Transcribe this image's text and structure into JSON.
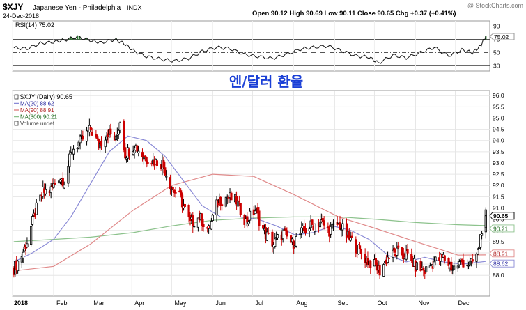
{
  "header": {
    "symbol": "$XJY",
    "name": "Japanese Yen - Philadelphia",
    "exchange": "INDX",
    "date": "24-Dec-2018",
    "ohlc": "Open 90.12  High 90.69  Low 90.11  Close 90.65  Chg +0.37 (+0.41%)",
    "watermark": "@ StockCharts.com"
  },
  "overlay_title": "엔/달러 환율",
  "colors": {
    "up": "#000000",
    "down": "#cc0000",
    "ma20": "#8a8ad6",
    "ma90": "#e08a8a",
    "ma300": "#8cc28c",
    "rsi_fill": "#2e7d32",
    "title_blue": "#1a3fd6",
    "grid": "#e6e6e6"
  },
  "chart_data": [
    {
      "type": "line",
      "panel": "RSI",
      "label": "RSI(14) 75.02",
      "last_value": 75.02,
      "last_label": "75.02",
      "y_ticks": [
        30,
        50,
        70,
        90
      ],
      "ylim": [
        24,
        96
      ],
      "reference_lines": [
        30,
        50,
        70
      ],
      "x": [
        "2018-01-02",
        "2018-01-12",
        "2018-01-22",
        "2018-02-01",
        "2018-02-09",
        "2018-02-19",
        "2018-03-01",
        "2018-03-09",
        "2018-03-19",
        "2018-03-26",
        "2018-04-02",
        "2018-04-12",
        "2018-04-23",
        "2018-05-03",
        "2018-05-14",
        "2018-05-24",
        "2018-06-04",
        "2018-06-14",
        "2018-06-25",
        "2018-07-05",
        "2018-07-16",
        "2018-07-26",
        "2018-08-06",
        "2018-08-16",
        "2018-08-27",
        "2018-09-06",
        "2018-09-17",
        "2018-09-27",
        "2018-10-04",
        "2018-10-15",
        "2018-10-25",
        "2018-11-05",
        "2018-11-15",
        "2018-11-26",
        "2018-12-06",
        "2018-12-14",
        "2018-12-20",
        "2018-12-24"
      ],
      "values": [
        57,
        56,
        64,
        66,
        69,
        74,
        68,
        65,
        70,
        64,
        53,
        44,
        40,
        37,
        41,
        52,
        58,
        56,
        47,
        44,
        41,
        47,
        55,
        58,
        60,
        53,
        45,
        43,
        34,
        46,
        42,
        50,
        58,
        45,
        54,
        50,
        60,
        75
      ]
    },
    {
      "type": "candlestick",
      "panel": "price",
      "legend": [
        {
          "key": "main",
          "text": "$XJY (Daily) 90.65"
        },
        {
          "key": "ma20",
          "text": "MA(20) 88.62"
        },
        {
          "key": "ma90",
          "text": "MA(90) 88.91"
        },
        {
          "key": "ma300",
          "text": "MA(300) 90.21"
        },
        {
          "key": "volume",
          "text": "Volume undef"
        }
      ],
      "y_ticks": [
        "88.0",
        "88.5",
        "89.0",
        "89.5",
        "90.0",
        "90.5",
        "91.0",
        "91.5",
        "92.0",
        "92.5",
        "93.0",
        "93.5",
        "94.0",
        "94.5",
        "95.0",
        "95.5",
        "96.0"
      ],
      "ylim": [
        87.2,
        96.1
      ],
      "x_labels": [
        "2018",
        "Feb",
        "Mar",
        "Apr",
        "May",
        "Jun",
        "Jul",
        "Aug",
        "Sep",
        "Oct",
        "Nov",
        "Dec"
      ],
      "last_value_tags": [
        {
          "key": "close",
          "text": "90.65",
          "value": 90.65
        },
        {
          "key": "ma300",
          "text": "90.21",
          "value": 90.21
        },
        {
          "key": "ma90",
          "text": "88.91",
          "value": 88.91
        },
        {
          "key": "ma20",
          "text": "88.62",
          "value": 88.62
        }
      ],
      "close_path": {
        "x": [
          "2018-01-02",
          "2018-01-08",
          "2018-01-12",
          "2018-01-18",
          "2018-01-24",
          "2018-01-30",
          "2018-02-05",
          "2018-02-09",
          "2018-02-15",
          "2018-02-22",
          "2018-03-01",
          "2018-03-07",
          "2018-03-14",
          "2018-03-20",
          "2018-03-23",
          "2018-03-27",
          "2018-04-03",
          "2018-04-10",
          "2018-04-17",
          "2018-04-24",
          "2018-05-01",
          "2018-05-08",
          "2018-05-15",
          "2018-05-22",
          "2018-05-29",
          "2018-06-05",
          "2018-06-12",
          "2018-06-19",
          "2018-06-26",
          "2018-07-03",
          "2018-07-10",
          "2018-07-17",
          "2018-07-24",
          "2018-07-31",
          "2018-08-07",
          "2018-08-14",
          "2018-08-21",
          "2018-08-28",
          "2018-09-04",
          "2018-09-11",
          "2018-09-18",
          "2018-09-25",
          "2018-10-02",
          "2018-10-05",
          "2018-10-11",
          "2018-10-18",
          "2018-10-25",
          "2018-11-01",
          "2018-11-08",
          "2018-11-15",
          "2018-11-22",
          "2018-11-29",
          "2018-12-06",
          "2018-12-13",
          "2018-12-18",
          "2018-12-21",
          "2018-12-24"
        ],
        "values": [
          88.3,
          88.9,
          89.5,
          90.8,
          91.7,
          91.8,
          92.4,
          92.2,
          93.6,
          94.0,
          94.5,
          93.8,
          94.4,
          94.0,
          94.9,
          93.4,
          93.8,
          93.3,
          93.1,
          93.0,
          91.9,
          91.4,
          90.3,
          90.6,
          90.0,
          91.3,
          91.5,
          91.3,
          90.4,
          90.9,
          89.9,
          89.4,
          89.9,
          89.4,
          89.9,
          90.2,
          90.4,
          90.0,
          90.3,
          89.7,
          89.2,
          88.7,
          88.4,
          88.2,
          88.8,
          89.0,
          88.9,
          88.4,
          88.2,
          88.6,
          88.8,
          88.3,
          88.6,
          88.5,
          89.0,
          90.1,
          90.65
        ]
      },
      "ma20": {
        "x": [
          "2018-01-02",
          "2018-01-16",
          "2018-02-01",
          "2018-02-14",
          "2018-03-01",
          "2018-03-15",
          "2018-03-29",
          "2018-04-12",
          "2018-04-26",
          "2018-05-10",
          "2018-05-24",
          "2018-06-07",
          "2018-06-21",
          "2018-07-05",
          "2018-07-19",
          "2018-08-02",
          "2018-08-16",
          "2018-08-30",
          "2018-09-13",
          "2018-09-27",
          "2018-10-11",
          "2018-10-25",
          "2018-11-08",
          "2018-11-22",
          "2018-12-06",
          "2018-12-24"
        ],
        "values": [
          88.6,
          89.0,
          89.6,
          90.6,
          92.1,
          93.5,
          94.2,
          94.0,
          93.3,
          92.2,
          91.1,
          90.6,
          90.6,
          90.5,
          90.2,
          89.8,
          89.9,
          90.2,
          90.0,
          89.6,
          88.9,
          88.6,
          88.8,
          88.6,
          88.5,
          88.62
        ]
      },
      "ma90": {
        "x": [
          "2018-01-02",
          "2018-02-01",
          "2018-03-01",
          "2018-04-02",
          "2018-05-01",
          "2018-06-01",
          "2018-07-02",
          "2018-08-01",
          "2018-09-04",
          "2018-10-01",
          "2018-11-01",
          "2018-12-03",
          "2018-12-24"
        ],
        "values": [
          88.2,
          88.4,
          89.4,
          90.9,
          92.0,
          92.5,
          92.4,
          91.6,
          90.6,
          90.1,
          89.5,
          88.9,
          88.91
        ]
      },
      "ma300": {
        "x": [
          "2018-01-02",
          "2018-02-01",
          "2018-03-01",
          "2018-04-02",
          "2018-05-01",
          "2018-06-01",
          "2018-07-02",
          "2018-08-01",
          "2018-09-04",
          "2018-10-01",
          "2018-11-01",
          "2018-12-03",
          "2018-12-24"
        ],
        "values": [
          89.5,
          89.6,
          89.7,
          89.9,
          90.2,
          90.45,
          90.55,
          90.6,
          90.6,
          90.5,
          90.35,
          90.25,
          90.21
        ]
      }
    }
  ]
}
